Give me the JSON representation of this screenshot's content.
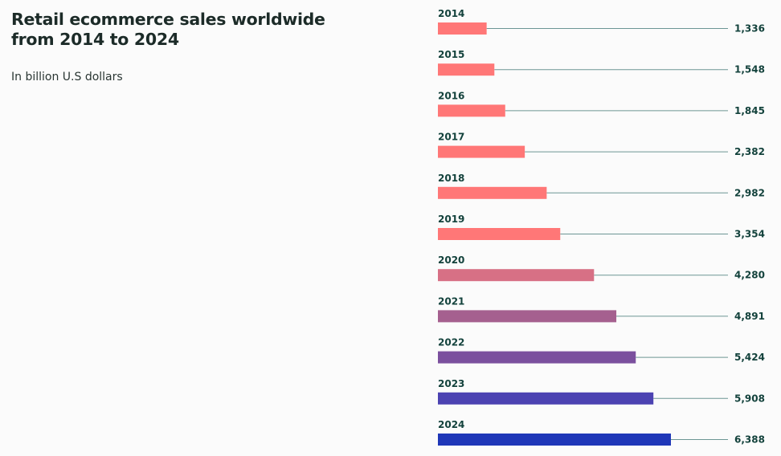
{
  "chart_data": {
    "type": "bar",
    "orientation": "horizontal",
    "title": "Retail ecommerce sales worldwide from 2014 to 2024",
    "subtitle": "In billion U.S dollars",
    "categories": [
      "2014",
      "2015",
      "2016",
      "2017",
      "2018",
      "2019",
      "2020",
      "2021",
      "2022",
      "2023",
      "2024"
    ],
    "values": [
      1336,
      1548,
      1845,
      2382,
      2982,
      3354,
      4280,
      4891,
      5424,
      5908,
      6388
    ],
    "value_labels": [
      "1,336",
      "1,548",
      "1,845",
      "2,382",
      "2,982",
      "3,354",
      "4,280",
      "4,891",
      "5,424",
      "5,908",
      "6,388"
    ],
    "colors": [
      "#ff7777",
      "#ff7777",
      "#ff7777",
      "#ff7777",
      "#ff7777",
      "#ff7777",
      "#d77085",
      "#a5608f",
      "#7b509e",
      "#4c43b2",
      "#1f37b8"
    ],
    "leader_line_color": "#6c9694",
    "grid": false,
    "legend": false
  }
}
